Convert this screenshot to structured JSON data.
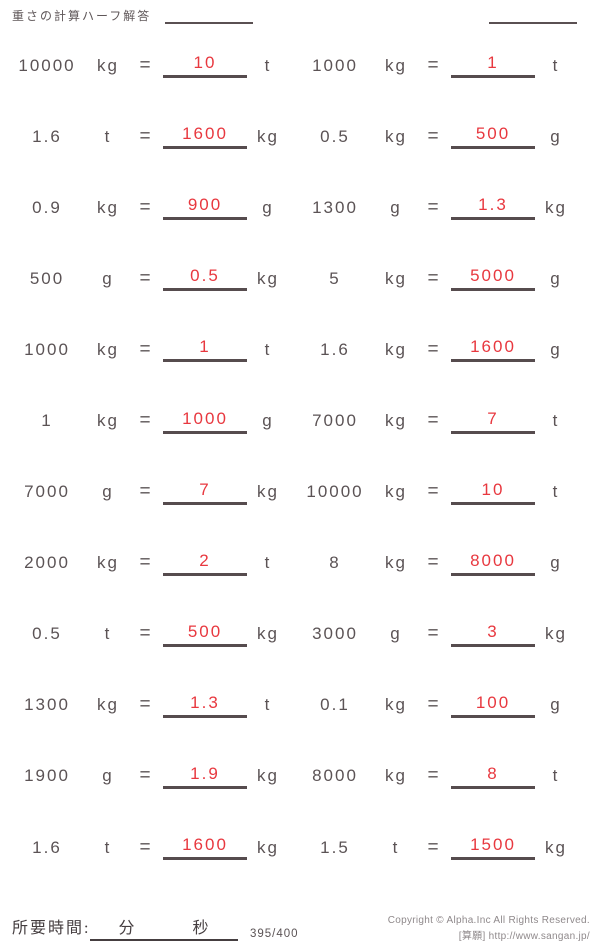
{
  "header": {
    "title": "重さの計算ハーフ解答"
  },
  "equals_sign": "=",
  "rows": [
    {
      "left": {
        "value": "10000",
        "unit": "kg",
        "answer": "10",
        "answer_unit": "t"
      },
      "right": {
        "value": "1000",
        "unit": "kg",
        "answer": "1",
        "answer_unit": "t"
      }
    },
    {
      "left": {
        "value": "1.6",
        "unit": "t",
        "answer": "1600",
        "answer_unit": "kg"
      },
      "right": {
        "value": "0.5",
        "unit": "kg",
        "answer": "500",
        "answer_unit": "g"
      }
    },
    {
      "left": {
        "value": "0.9",
        "unit": "kg",
        "answer": "900",
        "answer_unit": "g"
      },
      "right": {
        "value": "1300",
        "unit": "g",
        "answer": "1.3",
        "answer_unit": "kg"
      }
    },
    {
      "left": {
        "value": "500",
        "unit": "g",
        "answer": "0.5",
        "answer_unit": "kg"
      },
      "right": {
        "value": "5",
        "unit": "kg",
        "answer": "5000",
        "answer_unit": "g"
      }
    },
    {
      "left": {
        "value": "1000",
        "unit": "kg",
        "answer": "1",
        "answer_unit": "t"
      },
      "right": {
        "value": "1.6",
        "unit": "kg",
        "answer": "1600",
        "answer_unit": "g"
      }
    },
    {
      "left": {
        "value": "1",
        "unit": "kg",
        "answer": "1000",
        "answer_unit": "g"
      },
      "right": {
        "value": "7000",
        "unit": "kg",
        "answer": "7",
        "answer_unit": "t"
      }
    },
    {
      "left": {
        "value": "7000",
        "unit": "g",
        "answer": "7",
        "answer_unit": "kg"
      },
      "right": {
        "value": "10000",
        "unit": "kg",
        "answer": "10",
        "answer_unit": "t"
      }
    },
    {
      "left": {
        "value": "2000",
        "unit": "kg",
        "answer": "2",
        "answer_unit": "t"
      },
      "right": {
        "value": "8",
        "unit": "kg",
        "answer": "8000",
        "answer_unit": "g"
      }
    },
    {
      "left": {
        "value": "0.5",
        "unit": "t",
        "answer": "500",
        "answer_unit": "kg"
      },
      "right": {
        "value": "3000",
        "unit": "g",
        "answer": "3",
        "answer_unit": "kg"
      }
    },
    {
      "left": {
        "value": "1300",
        "unit": "kg",
        "answer": "1.3",
        "answer_unit": "t"
      },
      "right": {
        "value": "0.1",
        "unit": "kg",
        "answer": "100",
        "answer_unit": "g"
      }
    },
    {
      "left": {
        "value": "1900",
        "unit": "g",
        "answer": "1.9",
        "answer_unit": "kg"
      },
      "right": {
        "value": "8000",
        "unit": "kg",
        "answer": "8",
        "answer_unit": "t"
      }
    },
    {
      "left": {
        "value": "1.6",
        "unit": "t",
        "answer": "1600",
        "answer_unit": "kg"
      },
      "right": {
        "value": "1.5",
        "unit": "t",
        "answer": "1500",
        "answer_unit": "kg"
      }
    }
  ],
  "footer": {
    "time_label": "所要時間:",
    "minutes_label": "分",
    "seconds_label": "秒",
    "page_number": "395/400",
    "copyright_line1": "Copyright © Alpha.Inc All Rights Reserved.",
    "copyright_line2": "[算願] http://www.sangan.jp/"
  },
  "colors": {
    "answer_red": "#e8383f",
    "ink_gray": "#5b5355",
    "underline": "#564c4e"
  }
}
